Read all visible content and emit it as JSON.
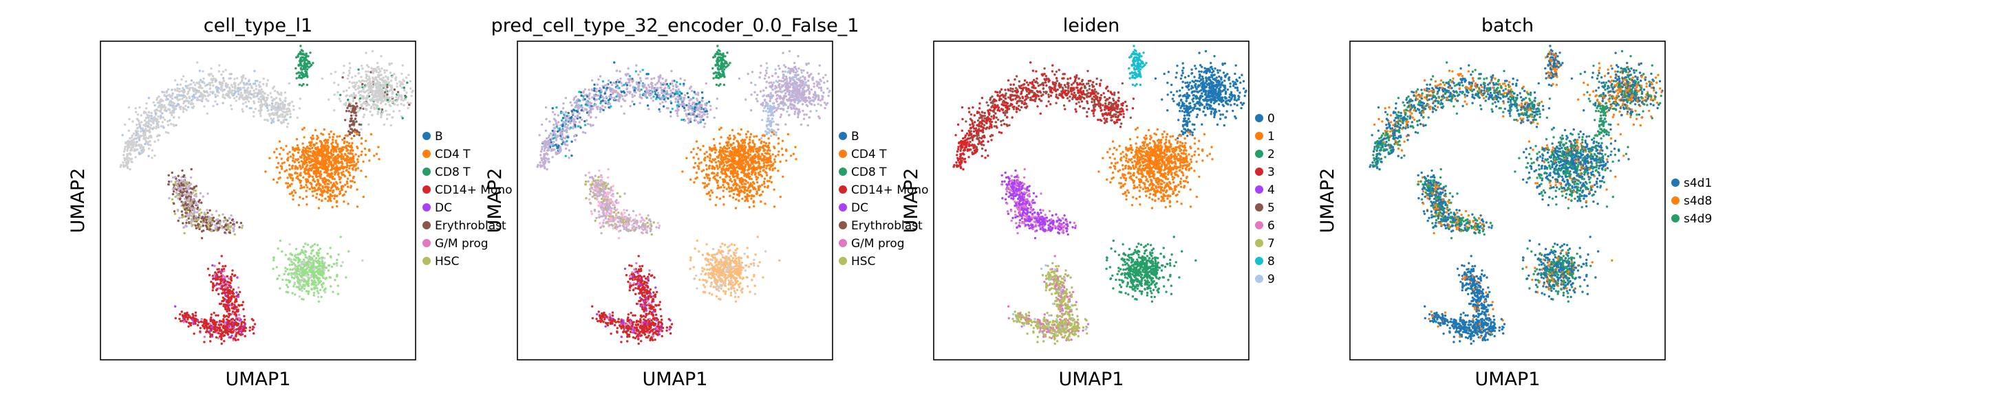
{
  "chart_data": [
    {
      "type": "scatter",
      "title": "cell_type_l1",
      "xlabel": "UMAP1",
      "ylabel": "UMAP2",
      "grid": false,
      "legend_position": "right",
      "legend": [
        {
          "name": "B",
          "color": "#1f77b4"
        },
        {
          "name": "CD4 T",
          "color": "#ff7f0e"
        },
        {
          "name": "CD8 T",
          "color": "#279e68"
        },
        {
          "name": "CD14+ Mono",
          "color": "#d62728"
        },
        {
          "name": "DC",
          "color": "#aa40fc"
        },
        {
          "name": "Erythroblast",
          "color": "#8c564b"
        },
        {
          "name": "G/M prog",
          "color": "#e377c2"
        },
        {
          "name": "HSC",
          "color": "#b5bd61"
        }
      ]
    },
    {
      "type": "scatter",
      "title": "pred_cell_type_32_encoder_0.0_False_1",
      "xlabel": "UMAP1",
      "ylabel": "UMAP2",
      "grid": false,
      "legend_position": "right",
      "legend": [
        {
          "name": "B",
          "color": "#1f77b4"
        },
        {
          "name": "CD4 T",
          "color": "#ff7f0e"
        },
        {
          "name": "CD8 T",
          "color": "#279e68"
        },
        {
          "name": "CD14+ Mono",
          "color": "#d62728"
        },
        {
          "name": "DC",
          "color": "#aa40fc"
        },
        {
          "name": "Erythroblast",
          "color": "#8c564b"
        },
        {
          "name": "G/M prog",
          "color": "#e377c2"
        },
        {
          "name": "HSC",
          "color": "#b5bd61"
        }
      ]
    },
    {
      "type": "scatter",
      "title": "leiden",
      "xlabel": "UMAP1",
      "ylabel": "UMAP2",
      "grid": false,
      "legend_position": "right",
      "legend": [
        {
          "name": "0",
          "color": "#1f77b4"
        },
        {
          "name": "1",
          "color": "#ff7f0e"
        },
        {
          "name": "2",
          "color": "#279e68"
        },
        {
          "name": "3",
          "color": "#d62728"
        },
        {
          "name": "4",
          "color": "#aa40fc"
        },
        {
          "name": "5",
          "color": "#8c564b"
        },
        {
          "name": "6",
          "color": "#e377c2"
        },
        {
          "name": "7",
          "color": "#b5bd61"
        },
        {
          "name": "8",
          "color": "#17becf"
        },
        {
          "name": "9",
          "color": "#aec7e8"
        }
      ]
    },
    {
      "type": "scatter",
      "title": "batch",
      "xlabel": "UMAP1",
      "ylabel": "UMAP2",
      "grid": false,
      "legend_position": "right",
      "legend": [
        {
          "name": "s4d1",
          "color": "#1f77b4"
        },
        {
          "name": "s4d8",
          "color": "#ff7f0e"
        },
        {
          "name": "s4d9",
          "color": "#279e68"
        }
      ]
    }
  ]
}
